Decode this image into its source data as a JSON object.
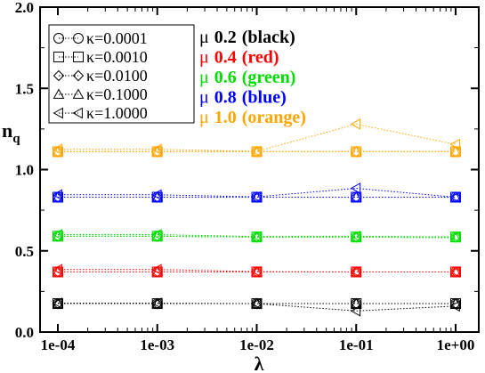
{
  "chart_data": {
    "type": "scatter",
    "xlabel": "λ",
    "ylabel_main": "n",
    "ylabel_sub": "q",
    "x_scale": "log",
    "xlim": [
      0.0001,
      1
    ],
    "ylim": [
      0.0,
      2.0
    ],
    "x_ticks": [
      {
        "value": 0.0001,
        "label": "1e-04"
      },
      {
        "value": 0.001,
        "label": "1e-03"
      },
      {
        "value": 0.01,
        "label": "1e-02"
      },
      {
        "value": 0.1,
        "label": "1e-01"
      },
      {
        "value": 1,
        "label": "1e+00"
      }
    ],
    "y_ticks": [
      {
        "value": 0.0,
        "label": "0.0"
      },
      {
        "value": 0.5,
        "label": "0.5"
      },
      {
        "value": 1.0,
        "label": "1.0"
      },
      {
        "value": 1.5,
        "label": "1.5"
      },
      {
        "value": 2.0,
        "label": "2.0"
      }
    ],
    "grid": false,
    "x": [
      0.0001,
      0.001,
      0.01,
      0.1,
      1
    ],
    "kappa_legend": [
      {
        "label": "κ=0.0001",
        "marker": "circle"
      },
      {
        "label": "κ=0.0010",
        "marker": "square"
      },
      {
        "label": "κ=0.0100",
        "marker": "diamond"
      },
      {
        "label": "κ=0.1000",
        "marker": "triangle-up"
      },
      {
        "label": "κ=1.0000",
        "marker": "triangle-left"
      }
    ],
    "mu_legend": [
      {
        "sym": "μ",
        "value": "0.2",
        "color_label": "(black)",
        "color": "#000000"
      },
      {
        "sym": "μ",
        "value": "0.4",
        "color_label": "(red)",
        "color": "#ff0000"
      },
      {
        "sym": "μ",
        "value": "0.6",
        "color_label": "(green)",
        "color": "#00dd00"
      },
      {
        "sym": "μ",
        "value": "0.8",
        "color_label": "(blue)",
        "color": "#0000ff"
      },
      {
        "sym": "μ",
        "value": "1.0",
        "color_label": "(orange)",
        "color": "#ffa500"
      }
    ],
    "groups": [
      {
        "mu": 0.2,
        "color": "#000000",
        "series": [
          {
            "kappa": 0.0001,
            "marker": "circle",
            "values": [
              0.175,
              0.175,
              0.175,
              0.175,
              0.175
            ]
          },
          {
            "kappa": 0.001,
            "marker": "square",
            "values": [
              0.175,
              0.175,
              0.175,
              0.175,
              0.175
            ]
          },
          {
            "kappa": 0.01,
            "marker": "diamond",
            "values": [
              0.175,
              0.175,
              0.175,
              0.175,
              0.175
            ]
          },
          {
            "kappa": 0.1,
            "marker": "triangle-up",
            "values": [
              0.175,
              0.175,
              0.175,
              0.175,
              0.175
            ]
          },
          {
            "kappa": 1.0,
            "marker": "triangle-left",
            "values": [
              0.178,
              0.178,
              0.175,
              0.13,
              0.16
            ]
          }
        ]
      },
      {
        "mu": 0.4,
        "color": "#ff0000",
        "series": [
          {
            "kappa": 0.0001,
            "marker": "circle",
            "values": [
              0.37,
              0.37,
              0.37,
              0.37,
              0.37
            ]
          },
          {
            "kappa": 0.001,
            "marker": "square",
            "values": [
              0.37,
              0.37,
              0.37,
              0.37,
              0.37
            ]
          },
          {
            "kappa": 0.01,
            "marker": "diamond",
            "values": [
              0.37,
              0.37,
              0.37,
              0.37,
              0.37
            ]
          },
          {
            "kappa": 0.1,
            "marker": "triangle-up",
            "values": [
              0.37,
              0.37,
              0.37,
              0.37,
              0.37
            ]
          },
          {
            "kappa": 1.0,
            "marker": "triangle-left",
            "values": [
              0.385,
              0.385,
              0.372,
              0.37,
              0.37
            ]
          }
        ]
      },
      {
        "mu": 0.6,
        "color": "#00dd00",
        "series": [
          {
            "kappa": 0.0001,
            "marker": "circle",
            "values": [
              0.59,
              0.59,
              0.585,
              0.585,
              0.585
            ]
          },
          {
            "kappa": 0.001,
            "marker": "square",
            "values": [
              0.59,
              0.59,
              0.585,
              0.585,
              0.585
            ]
          },
          {
            "kappa": 0.01,
            "marker": "diamond",
            "values": [
              0.59,
              0.59,
              0.585,
              0.585,
              0.585
            ]
          },
          {
            "kappa": 0.1,
            "marker": "triangle-up",
            "values": [
              0.59,
              0.59,
              0.585,
              0.585,
              0.58
            ]
          },
          {
            "kappa": 1.0,
            "marker": "triangle-left",
            "values": [
              0.6,
              0.6,
              0.588,
              0.59,
              0.585
            ]
          }
        ]
      },
      {
        "mu": 0.8,
        "color": "#0000ff",
        "series": [
          {
            "kappa": 0.0001,
            "marker": "circle",
            "values": [
              0.83,
              0.83,
              0.83,
              0.83,
              0.83
            ]
          },
          {
            "kappa": 0.001,
            "marker": "square",
            "values": [
              0.83,
              0.83,
              0.83,
              0.83,
              0.83
            ]
          },
          {
            "kappa": 0.01,
            "marker": "diamond",
            "values": [
              0.83,
              0.83,
              0.83,
              0.83,
              0.83
            ]
          },
          {
            "kappa": 0.1,
            "marker": "triangle-up",
            "values": [
              0.83,
              0.83,
              0.83,
              0.83,
              0.83
            ]
          },
          {
            "kappa": 1.0,
            "marker": "triangle-left",
            "values": [
              0.845,
              0.845,
              0.832,
              0.885,
              0.83
            ]
          }
        ]
      },
      {
        "mu": 1.0,
        "color": "#ffa500",
        "series": [
          {
            "kappa": 0.0001,
            "marker": "circle",
            "values": [
              1.11,
              1.11,
              1.11,
              1.11,
              1.11
            ]
          },
          {
            "kappa": 0.001,
            "marker": "square",
            "values": [
              1.11,
              1.11,
              1.11,
              1.11,
              1.11
            ]
          },
          {
            "kappa": 0.01,
            "marker": "diamond",
            "values": [
              1.11,
              1.11,
              1.11,
              1.11,
              1.11
            ]
          },
          {
            "kappa": 0.1,
            "marker": "triangle-up",
            "values": [
              1.11,
              1.11,
              1.11,
              1.11,
              1.11
            ]
          },
          {
            "kappa": 1.0,
            "marker": "triangle-left",
            "values": [
              1.125,
              1.125,
              1.112,
              1.28,
              1.155
            ]
          }
        ]
      }
    ]
  }
}
